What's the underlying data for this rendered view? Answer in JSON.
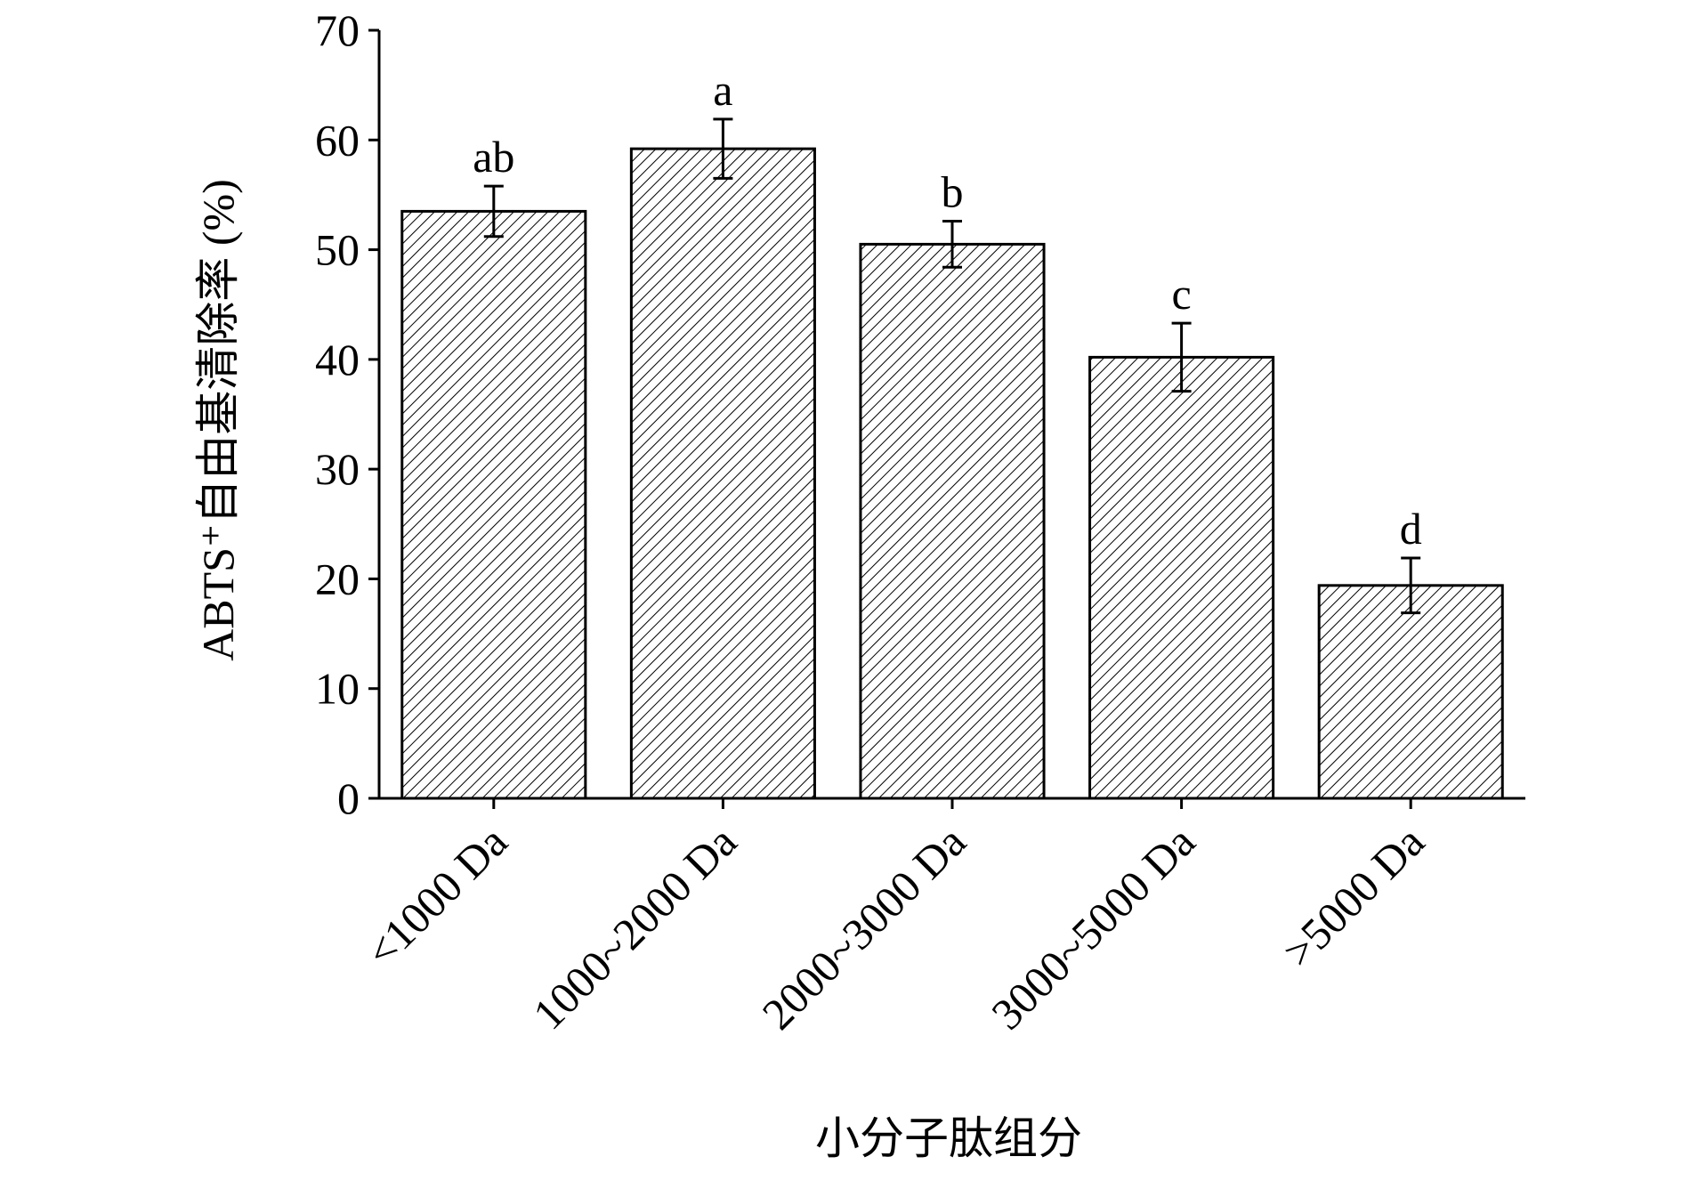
{
  "chart_data": {
    "type": "bar",
    "y_label": "ABTS⁺自由基清除率 (%)",
    "x_label": "小分子肽组分",
    "categories": [
      "<1000 Da",
      "1000~2000 Da",
      "2000~3000 Da",
      "3000~5000 Da",
      ">5000 Da"
    ],
    "values": [
      53.5,
      59.2,
      50.5,
      40.2,
      19.4
    ],
    "errors": [
      2.3,
      2.7,
      2.1,
      3.1,
      2.5
    ],
    "annotations": [
      "ab",
      "a",
      "b",
      "c",
      "d"
    ],
    "color": "#000000",
    "ylim": [
      0,
      70
    ],
    "yticks": [
      0,
      10,
      20,
      30,
      40,
      50,
      60,
      70
    ],
    "grid": false
  }
}
